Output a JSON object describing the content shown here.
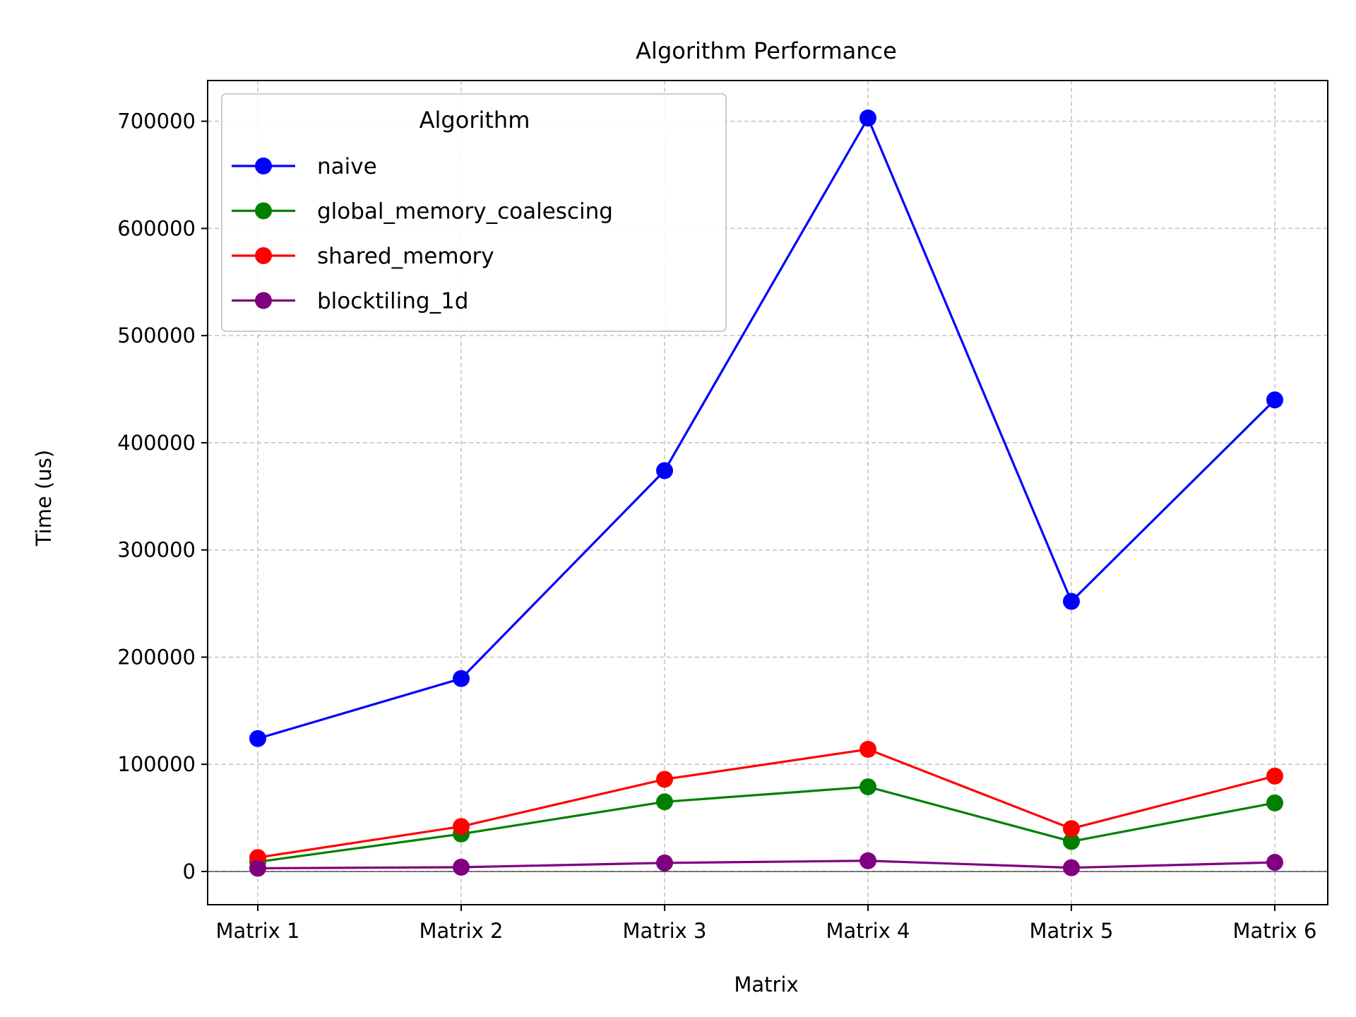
{
  "chart_data": {
    "type": "line",
    "title": "Algorithm Performance",
    "xlabel": "Matrix",
    "ylabel": "Time (us)",
    "categories": [
      "Matrix 1",
      "Matrix 2",
      "Matrix 3",
      "Matrix 4",
      "Matrix 5",
      "Matrix 6"
    ],
    "ylim": [
      -31000,
      738000
    ],
    "yticks": [
      0,
      100000,
      200000,
      300000,
      400000,
      500000,
      600000,
      700000
    ],
    "ytick_labels": [
      "0",
      "100000",
      "200000",
      "300000",
      "400000",
      "500000",
      "600000",
      "700000"
    ],
    "grid": true,
    "zero_line": true,
    "legend": {
      "title": "Algorithm",
      "placement": "top-left"
    },
    "series": [
      {
        "name": "naive",
        "color": "#0000ff",
        "marker": "circle",
        "values": [
          124000,
          180000,
          374000,
          703000,
          252000,
          440000
        ]
      },
      {
        "name": "global_memory_coalescing",
        "color": "#008000",
        "marker": "circle",
        "values": [
          9000,
          35000,
          65000,
          79000,
          28000,
          64000
        ]
      },
      {
        "name": "shared_memory",
        "color": "#ff0000",
        "marker": "circle",
        "values": [
          13000,
          42000,
          86000,
          114000,
          40000,
          89000
        ]
      },
      {
        "name": "blocktiling_1d",
        "color": "#800080",
        "marker": "circle",
        "values": [
          3000,
          4000,
          8000,
          10000,
          3500,
          8500
        ]
      }
    ]
  }
}
